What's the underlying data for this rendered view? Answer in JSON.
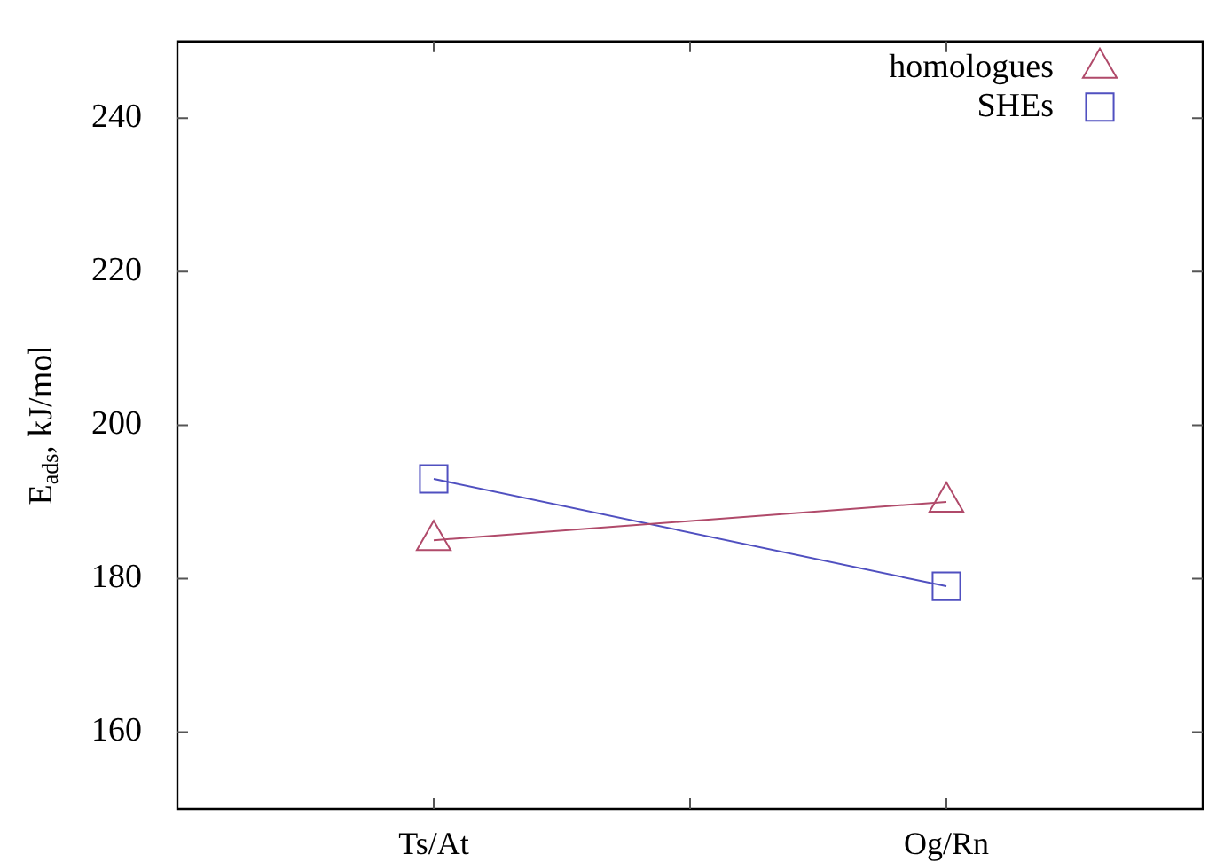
{
  "chart_data": {
    "type": "line",
    "ylabel": "E$_{ads}$, kJ/mol",
    "categories": [
      "Ts/At",
      "Og/Rn"
    ],
    "ylim": [
      150,
      250
    ],
    "yticks": [
      160,
      180,
      200,
      220,
      240
    ],
    "series": [
      {
        "name": "homologues",
        "color": "#b04a6a",
        "marker": "triangle",
        "values": [
          185,
          190
        ]
      },
      {
        "name": "SHEs",
        "color": "#5050c0",
        "marker": "square",
        "values": [
          193,
          179
        ]
      }
    ],
    "grid": false,
    "legend": "top right",
    "line_style": "solid"
  }
}
